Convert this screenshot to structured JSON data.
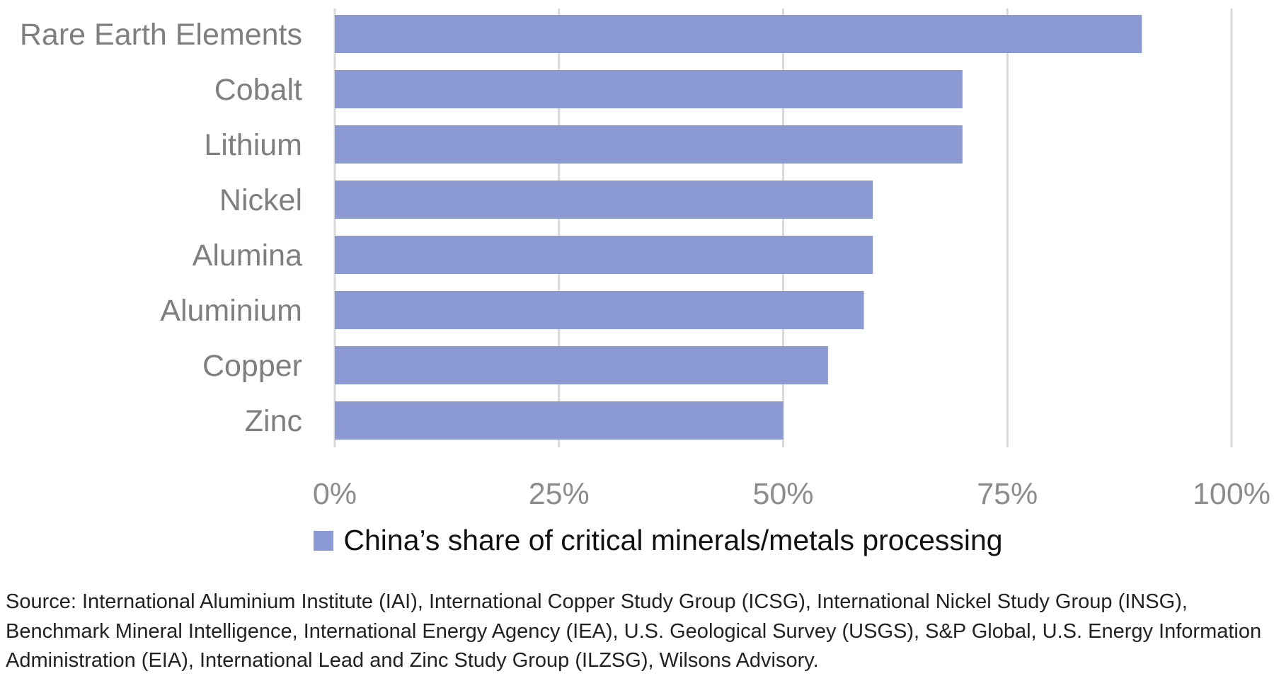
{
  "chart_data": {
    "type": "bar",
    "orientation": "horizontal",
    "categories": [
      "Rare Earth Elements",
      "Cobalt",
      "Lithium",
      "Nickel",
      "Alumina",
      "Aluminium",
      "Copper",
      "Zinc"
    ],
    "series": [
      {
        "name": "China’s share of critical minerals/metals processing",
        "values": [
          90,
          70,
          70,
          60,
          60,
          59,
          55,
          50
        ],
        "color": "#8c9ad4"
      }
    ],
    "xlim": [
      0,
      100
    ],
    "xticks": [
      "0%",
      "25%",
      "50%",
      "75%",
      "100%"
    ],
    "xtick_values": [
      0,
      25,
      50,
      75,
      100
    ],
    "grid": true,
    "legend_position": "bottom",
    "gridline_color": "#d9d9d9"
  },
  "source": "Source: International Aluminium Institute (IAI), International Copper Study Group (ICSG), International Nickel Study Group (INSG), Benchmark Mineral Intelligence, International Energy Agency (IEA), U.S. Geological Survey (USGS), S&P Global, U.S. Energy Information Administration (EIA), International Lead and Zinc Study Group (ILZSG), Wilsons Advisory."
}
